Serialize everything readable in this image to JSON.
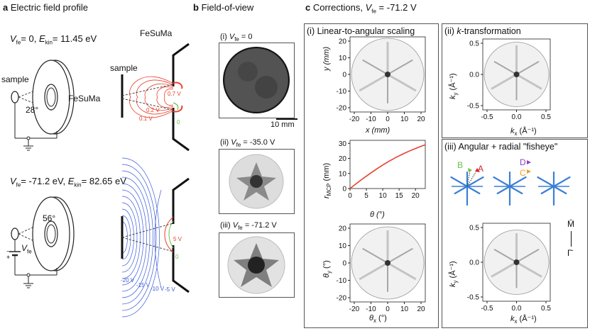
{
  "panel_a": {
    "letter": "a",
    "title": "Electric field profile",
    "top_condition_vfe": "= 0, ",
    "top_condition_ekin": "= 11.45 eV",
    "bottom_condition_vfe": "= -71.2 eV, ",
    "bottom_condition_ekin": "= 82.65 eV",
    "sample": "sample",
    "fesuma": "FeSuMa",
    "angle_top": "28°",
    "angle_bottom": "56°",
    "vfe_label": "V",
    "vfe_sub": "fe",
    "volt_labels_top": [
      "0.7 V",
      "0.2 V",
      "0.1 V",
      "0"
    ],
    "volt_labels_bottom": [
      "5 V",
      "0",
      "-20 V",
      "-15 V",
      "-10 V",
      "-5 V"
    ],
    "var_V": "V",
    "var_E": "E",
    "sub_fe": "fe",
    "sub_kin": "kin"
  },
  "panel_b": {
    "letter": "b",
    "title": "Field-of-view",
    "items": [
      {
        "roman": "(i)",
        "value": "= 0"
      },
      {
        "roman": "(ii)",
        "value": "= -35.0 V"
      },
      {
        "roman": "(iii)",
        "value": "= -71.2 V"
      }
    ],
    "scale_bar": "10 mm"
  },
  "panel_c": {
    "letter": "c",
    "title_prefix": "Corrections, ",
    "title_value": "= -71.2 V",
    "sub_i": "(i) Linear-to-angular scaling",
    "sub_ii_prefix": "(ii) ",
    "sub_ii_k": "k",
    "sub_ii_rest": "-transformation",
    "sub_iii": "(iii) Angular + radial \"fisheye\"",
    "plot1": {
      "xlabel": "x (mm)",
      "ylabel": "y (mm)",
      "xticks": [
        "-20",
        "-10",
        "0",
        "10",
        "20"
      ],
      "yticks": [
        "20",
        "10",
        "0",
        "-10",
        "-20"
      ]
    },
    "plot2": {
      "xlabel": "θ (°)",
      "ylabel_main": "r",
      "ylabel_sub": "MCP",
      "ylabel_rest": " (mm)",
      "xticks": [
        "0",
        "5",
        "10",
        "15",
        "20"
      ],
      "yticks": [
        "30",
        "20",
        "10",
        "0"
      ]
    },
    "plot3": {
      "xlabel_main": "θ",
      "xlabel_sub": "x",
      "xlabel_rest": " (°)",
      "ylabel_main": "θ",
      "ylabel_sub": "y",
      "ylabel_rest": " (°)",
      "xticks": [
        "-20",
        "-10",
        "0",
        "10",
        "20"
      ],
      "yticks": [
        "20",
        "10",
        "0",
        "-10",
        "-20"
      ]
    },
    "plot4": {
      "xlabel_main": "k",
      "xlabel_sub": "x",
      "xlabel_rest": " (Å⁻¹)",
      "ylabel_main": "k",
      "ylabel_sub": "y",
      "ylabel_rest": " (Å⁻¹)",
      "xticks": [
        "-0.5",
        "0.0",
        "0.5"
      ],
      "yticks": [
        "0.5",
        "0.0",
        "-0.5"
      ]
    },
    "plot5": {
      "xlabel_main": "k",
      "xlabel_sub": "x",
      "xlabel_rest": " (Å⁻¹)",
      "ylabel_main": "k",
      "ylabel_sub": "y",
      "ylabel_rest": " (Å⁻¹)",
      "xticks": [
        "-0.5",
        "0.0",
        "0.5"
      ],
      "yticks": [
        "0.5",
        "0.0",
        "-0.5"
      ]
    },
    "markers": {
      "A": "A",
      "B": "B",
      "C": "C",
      "D": "D"
    },
    "direction_top": "M̄",
    "direction_bottom": "Γ̄",
    "colors": {
      "red_curve": "#e8412c",
      "A": "#d9232d",
      "B": "#6ac04a",
      "C": "#f39c1f",
      "D": "#8e3fbf",
      "star": "#3a7fd6",
      "field_blue": "#3b5bd9"
    }
  },
  "chart_data": {
    "type": "line",
    "xlabel": "θ (°)",
    "ylabel": "r_MCP (mm)",
    "xlim": [
      0,
      23
    ],
    "ylim": [
      0,
      32
    ],
    "x": [
      0,
      2,
      4,
      6,
      8,
      10,
      12,
      14,
      16,
      18,
      20,
      22,
      23
    ],
    "y": [
      0,
      3.4,
      6.7,
      9.8,
      12.8,
      15.6,
      18.2,
      20.6,
      22.8,
      24.8,
      26.6,
      28.3,
      29.0
    ]
  }
}
